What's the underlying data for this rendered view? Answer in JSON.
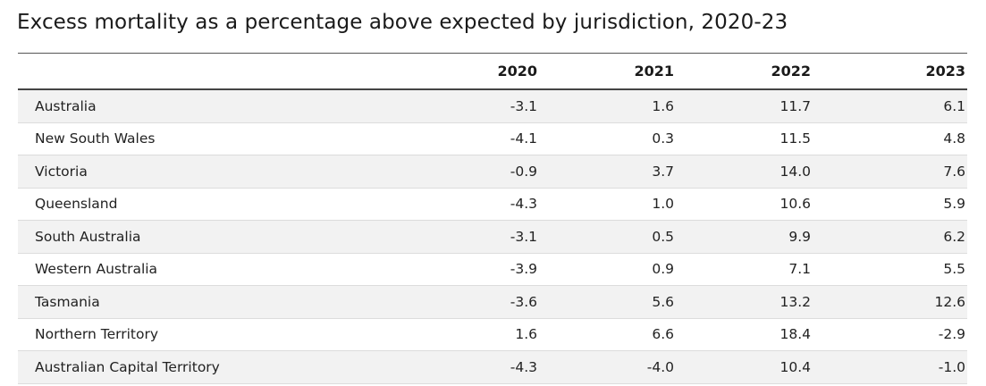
{
  "chart_data": {
    "type": "table",
    "title": "Excess mortality as a percentage above expected by jurisdiction, 2020-23",
    "columns": [
      "",
      "2020",
      "2021",
      "2022",
      "2023"
    ],
    "rows": [
      {
        "label": "Australia",
        "values": [
          "-3.1",
          "1.6",
          "11.7",
          "6.1"
        ]
      },
      {
        "label": "New South Wales",
        "values": [
          "-4.1",
          "0.3",
          "11.5",
          "4.8"
        ]
      },
      {
        "label": "Victoria",
        "values": [
          "-0.9",
          "3.7",
          "14.0",
          "7.6"
        ]
      },
      {
        "label": "Queensland",
        "values": [
          "-4.3",
          "1.0",
          "10.6",
          "5.9"
        ]
      },
      {
        "label": "South Australia",
        "values": [
          "-3.1",
          "0.5",
          "9.9",
          "6.2"
        ]
      },
      {
        "label": "Western Australia",
        "values": [
          "-3.9",
          "0.9",
          "7.1",
          "5.5"
        ]
      },
      {
        "label": "Tasmania",
        "values": [
          "-3.6",
          "5.6",
          "13.2",
          "12.6"
        ]
      },
      {
        "label": "Northern Territory",
        "values": [
          "1.6",
          "6.6",
          "18.4",
          "-2.9"
        ]
      },
      {
        "label": "Australian Capital Territory",
        "values": [
          "-4.3",
          "-4.0",
          "10.4",
          "-1.0"
        ]
      }
    ],
    "striped_rows": true,
    "stripe_color": "#f2f2f2"
  }
}
